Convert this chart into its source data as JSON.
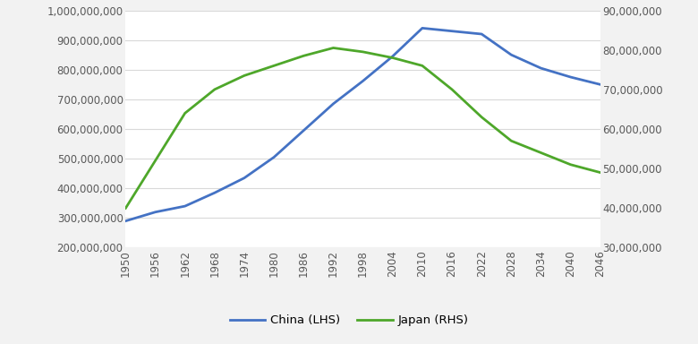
{
  "years": [
    1950,
    1956,
    1962,
    1968,
    1974,
    1980,
    1986,
    1992,
    1998,
    2004,
    2010,
    2016,
    2022,
    2028,
    2034,
    2040,
    2046
  ],
  "china": [
    290000000,
    320000000,
    340000000,
    385000000,
    435000000,
    505000000,
    595000000,
    685000000,
    762000000,
    845000000,
    940000000,
    930000000,
    920000000,
    850000000,
    805000000,
    775000000,
    750000000
  ],
  "japan": [
    40000000,
    52000000,
    64000000,
    70000000,
    73500000,
    76000000,
    78500000,
    80500000,
    79500000,
    78000000,
    76000000,
    70000000,
    63000000,
    57000000,
    54000000,
    51000000,
    49000000
  ],
  "china_color": "#4472C4",
  "japan_color": "#4EA72A",
  "line_width": 2.0,
  "background_color": "#FFFFFF",
  "outer_bg": "#F2F2F2",
  "grid_color": "#D9D9D9",
  "legend_china": "China (LHS)",
  "legend_japan": "Japan (RHS)",
  "lhs_ylim": [
    200000000,
    1000000000
  ],
  "lhs_yticks": [
    200000000,
    300000000,
    400000000,
    500000000,
    600000000,
    700000000,
    800000000,
    900000000,
    1000000000
  ],
  "rhs_ylim": [
    30000000,
    90000000
  ],
  "rhs_yticks": [
    30000000,
    40000000,
    50000000,
    60000000,
    70000000,
    80000000,
    90000000
  ],
  "tick_label_color": "#595959",
  "tick_fontsize": 8.5,
  "legend_fontsize": 9.5
}
